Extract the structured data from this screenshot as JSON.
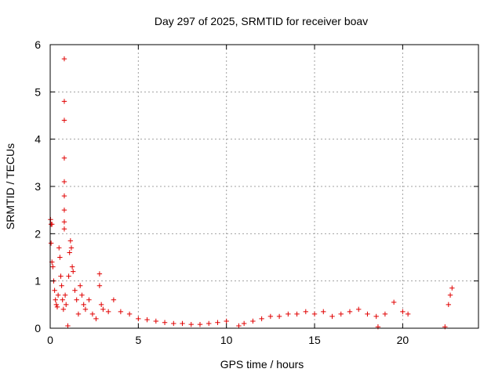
{
  "chart_data": {
    "type": "scatter",
    "title": "Day 297 of 2025, SRMTID for receiver boav",
    "xlabel": "GPS time / hours",
    "ylabel": "SRMTID / TECUs",
    "xlim": [
      0,
      24.3
    ],
    "ylim": [
      0,
      6
    ],
    "xticks": [
      0,
      5,
      10,
      15,
      20
    ],
    "yticks": [
      0,
      1,
      2,
      3,
      4,
      5,
      6
    ],
    "grid": true,
    "marker": "+",
    "series": [
      {
        "name": "SRMTID",
        "color": "#e00000",
        "points": [
          [
            0.02,
            2.3
          ],
          [
            0.05,
            2.2
          ],
          [
            0.1,
            2.2
          ],
          [
            0.05,
            1.8
          ],
          [
            0.1,
            1.4
          ],
          [
            0.15,
            1.3
          ],
          [
            0.2,
            1.0
          ],
          [
            0.25,
            0.8
          ],
          [
            0.3,
            0.6
          ],
          [
            0.35,
            0.5
          ],
          [
            0.4,
            0.45
          ],
          [
            0.45,
            0.7
          ],
          [
            0.5,
            1.7
          ],
          [
            0.55,
            1.5
          ],
          [
            0.6,
            1.1
          ],
          [
            0.65,
            0.9
          ],
          [
            0.7,
            0.6
          ],
          [
            0.75,
            0.4
          ],
          [
            0.8,
            5.7
          ],
          [
            0.8,
            4.8
          ],
          [
            0.8,
            4.4
          ],
          [
            0.8,
            3.6
          ],
          [
            0.8,
            3.1
          ],
          [
            0.8,
            2.8
          ],
          [
            0.8,
            2.5
          ],
          [
            0.8,
            2.25
          ],
          [
            0.8,
            2.1
          ],
          [
            0.85,
            0.7
          ],
          [
            0.9,
            0.5
          ],
          [
            1.0,
            0.05
          ],
          [
            1.05,
            1.1
          ],
          [
            1.1,
            1.6
          ],
          [
            1.15,
            1.85
          ],
          [
            1.2,
            1.7
          ],
          [
            1.25,
            1.3
          ],
          [
            1.3,
            1.2
          ],
          [
            1.4,
            0.8
          ],
          [
            1.5,
            0.6
          ],
          [
            1.6,
            0.3
          ],
          [
            1.7,
            0.9
          ],
          [
            1.8,
            0.7
          ],
          [
            1.9,
            0.5
          ],
          [
            2.0,
            0.4
          ],
          [
            2.2,
            0.6
          ],
          [
            2.4,
            0.3
          ],
          [
            2.6,
            0.2
          ],
          [
            2.8,
            1.15
          ],
          [
            2.8,
            0.9
          ],
          [
            2.9,
            0.5
          ],
          [
            3.0,
            0.4
          ],
          [
            3.3,
            0.35
          ],
          [
            3.6,
            0.6
          ],
          [
            4.0,
            0.35
          ],
          [
            4.5,
            0.3
          ],
          [
            5.0,
            0.2
          ],
          [
            5.5,
            0.18
          ],
          [
            6.0,
            0.15
          ],
          [
            6.5,
            0.12
          ],
          [
            7.0,
            0.1
          ],
          [
            7.5,
            0.1
          ],
          [
            8.0,
            0.08
          ],
          [
            8.5,
            0.08
          ],
          [
            9.0,
            0.1
          ],
          [
            9.5,
            0.12
          ],
          [
            10.0,
            0.15
          ],
          [
            10.7,
            0.05
          ],
          [
            11.0,
            0.1
          ],
          [
            11.5,
            0.15
          ],
          [
            12.0,
            0.2
          ],
          [
            12.5,
            0.25
          ],
          [
            13.0,
            0.25
          ],
          [
            13.5,
            0.3
          ],
          [
            14.0,
            0.3
          ],
          [
            14.5,
            0.35
          ],
          [
            15.0,
            0.3
          ],
          [
            15.5,
            0.35
          ],
          [
            16.0,
            0.25
          ],
          [
            16.5,
            0.3
          ],
          [
            17.0,
            0.35
          ],
          [
            17.5,
            0.4
          ],
          [
            18.0,
            0.3
          ],
          [
            18.5,
            0.25
          ],
          [
            18.6,
            0.03
          ],
          [
            19.0,
            0.3
          ],
          [
            19.5,
            0.55
          ],
          [
            20.0,
            0.35
          ],
          [
            20.3,
            0.3
          ],
          [
            22.4,
            0.03
          ],
          [
            22.6,
            0.5
          ],
          [
            22.7,
            0.7
          ],
          [
            22.8,
            0.85
          ]
        ]
      }
    ]
  }
}
